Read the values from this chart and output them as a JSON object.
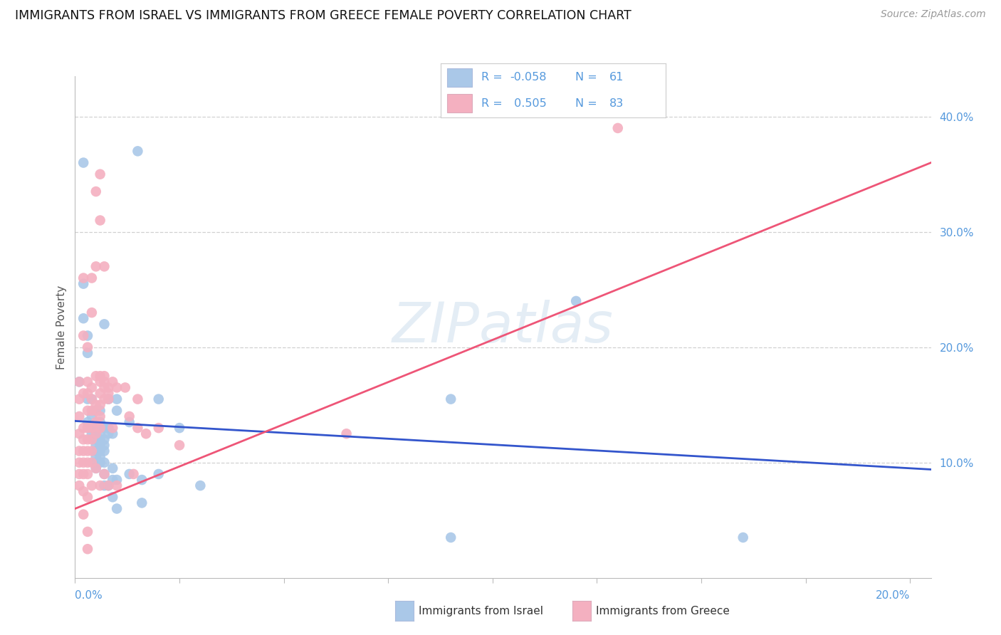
{
  "title": "IMMIGRANTS FROM ISRAEL VS IMMIGRANTS FROM GREECE FEMALE POVERTY CORRELATION CHART",
  "source": "Source: ZipAtlas.com",
  "ylabel": "Female Poverty",
  "xlim": [
    0.0,
    0.205
  ],
  "ylim": [
    0.0,
    0.435
  ],
  "yticks": [
    0.1,
    0.2,
    0.3,
    0.4
  ],
  "ytick_labels": [
    "10.0%",
    "20.0%",
    "30.0%",
    "40.0%"
  ],
  "xtick_positions": [
    0.0,
    0.025,
    0.05,
    0.075,
    0.1,
    0.125,
    0.15,
    0.175,
    0.2
  ],
  "israel_color": "#aac8e8",
  "greece_color": "#f4b0c0",
  "israel_line_color": "#3355cc",
  "greece_line_color": "#ee5577",
  "tick_label_color": "#5599dd",
  "legend_text_color": "#5599dd",
  "watermark": "ZIPatlas",
  "background_color": "#ffffff",
  "israel_scatter": [
    [
      0.001,
      0.17
    ],
    [
      0.002,
      0.36
    ],
    [
      0.002,
      0.255
    ],
    [
      0.002,
      0.225
    ],
    [
      0.003,
      0.21
    ],
    [
      0.003,
      0.195
    ],
    [
      0.003,
      0.155
    ],
    [
      0.003,
      0.135
    ],
    [
      0.004,
      0.155
    ],
    [
      0.004,
      0.14
    ],
    [
      0.004,
      0.13
    ],
    [
      0.004,
      0.125
    ],
    [
      0.005,
      0.145
    ],
    [
      0.005,
      0.13
    ],
    [
      0.005,
      0.12
    ],
    [
      0.005,
      0.115
    ],
    [
      0.005,
      0.11
    ],
    [
      0.005,
      0.105
    ],
    [
      0.005,
      0.1
    ],
    [
      0.005,
      0.095
    ],
    [
      0.006,
      0.145
    ],
    [
      0.006,
      0.135
    ],
    [
      0.006,
      0.125
    ],
    [
      0.006,
      0.12
    ],
    [
      0.006,
      0.115
    ],
    [
      0.006,
      0.11
    ],
    [
      0.006,
      0.105
    ],
    [
      0.006,
      0.1
    ],
    [
      0.007,
      0.22
    ],
    [
      0.007,
      0.13
    ],
    [
      0.007,
      0.12
    ],
    [
      0.007,
      0.115
    ],
    [
      0.007,
      0.11
    ],
    [
      0.007,
      0.1
    ],
    [
      0.007,
      0.09
    ],
    [
      0.007,
      0.08
    ],
    [
      0.008,
      0.155
    ],
    [
      0.008,
      0.13
    ],
    [
      0.008,
      0.125
    ],
    [
      0.008,
      0.08
    ],
    [
      0.009,
      0.125
    ],
    [
      0.009,
      0.095
    ],
    [
      0.009,
      0.085
    ],
    [
      0.009,
      0.07
    ],
    [
      0.01,
      0.155
    ],
    [
      0.01,
      0.145
    ],
    [
      0.01,
      0.085
    ],
    [
      0.01,
      0.06
    ],
    [
      0.013,
      0.135
    ],
    [
      0.013,
      0.09
    ],
    [
      0.015,
      0.37
    ],
    [
      0.016,
      0.085
    ],
    [
      0.016,
      0.065
    ],
    [
      0.02,
      0.155
    ],
    [
      0.02,
      0.09
    ],
    [
      0.025,
      0.13
    ],
    [
      0.03,
      0.08
    ],
    [
      0.09,
      0.155
    ],
    [
      0.09,
      0.035
    ],
    [
      0.12,
      0.24
    ],
    [
      0.16,
      0.035
    ]
  ],
  "greece_scatter": [
    [
      0.001,
      0.17
    ],
    [
      0.001,
      0.155
    ],
    [
      0.001,
      0.14
    ],
    [
      0.001,
      0.125
    ],
    [
      0.001,
      0.11
    ],
    [
      0.001,
      0.1
    ],
    [
      0.001,
      0.09
    ],
    [
      0.001,
      0.08
    ],
    [
      0.002,
      0.26
    ],
    [
      0.002,
      0.21
    ],
    [
      0.002,
      0.16
    ],
    [
      0.002,
      0.13
    ],
    [
      0.002,
      0.12
    ],
    [
      0.002,
      0.11
    ],
    [
      0.002,
      0.1
    ],
    [
      0.002,
      0.09
    ],
    [
      0.002,
      0.075
    ],
    [
      0.002,
      0.055
    ],
    [
      0.003,
      0.2
    ],
    [
      0.003,
      0.17
    ],
    [
      0.003,
      0.16
    ],
    [
      0.003,
      0.145
    ],
    [
      0.003,
      0.13
    ],
    [
      0.003,
      0.12
    ],
    [
      0.003,
      0.11
    ],
    [
      0.003,
      0.1
    ],
    [
      0.003,
      0.09
    ],
    [
      0.003,
      0.07
    ],
    [
      0.003,
      0.04
    ],
    [
      0.003,
      0.025
    ],
    [
      0.004,
      0.26
    ],
    [
      0.004,
      0.23
    ],
    [
      0.004,
      0.165
    ],
    [
      0.004,
      0.155
    ],
    [
      0.004,
      0.145
    ],
    [
      0.004,
      0.13
    ],
    [
      0.004,
      0.12
    ],
    [
      0.004,
      0.11
    ],
    [
      0.004,
      0.1
    ],
    [
      0.004,
      0.08
    ],
    [
      0.005,
      0.335
    ],
    [
      0.005,
      0.27
    ],
    [
      0.005,
      0.175
    ],
    [
      0.005,
      0.15
    ],
    [
      0.005,
      0.145
    ],
    [
      0.005,
      0.135
    ],
    [
      0.005,
      0.125
    ],
    [
      0.005,
      0.095
    ],
    [
      0.006,
      0.35
    ],
    [
      0.006,
      0.31
    ],
    [
      0.006,
      0.175
    ],
    [
      0.006,
      0.17
    ],
    [
      0.006,
      0.16
    ],
    [
      0.006,
      0.15
    ],
    [
      0.006,
      0.14
    ],
    [
      0.006,
      0.13
    ],
    [
      0.006,
      0.08
    ],
    [
      0.007,
      0.27
    ],
    [
      0.007,
      0.175
    ],
    [
      0.007,
      0.17
    ],
    [
      0.007,
      0.165
    ],
    [
      0.007,
      0.155
    ],
    [
      0.007,
      0.09
    ],
    [
      0.008,
      0.165
    ],
    [
      0.008,
      0.16
    ],
    [
      0.008,
      0.155
    ],
    [
      0.008,
      0.08
    ],
    [
      0.009,
      0.17
    ],
    [
      0.009,
      0.13
    ],
    [
      0.01,
      0.165
    ],
    [
      0.01,
      0.08
    ],
    [
      0.012,
      0.165
    ],
    [
      0.013,
      0.14
    ],
    [
      0.014,
      0.09
    ],
    [
      0.015,
      0.155
    ],
    [
      0.015,
      0.13
    ],
    [
      0.017,
      0.125
    ],
    [
      0.02,
      0.13
    ],
    [
      0.025,
      0.115
    ],
    [
      0.065,
      0.125
    ],
    [
      0.13,
      0.39
    ]
  ],
  "israel_trend_x": [
    0.0,
    0.205
  ],
  "israel_trend_y": [
    0.136,
    0.094
  ],
  "greece_trend_x": [
    0.0,
    0.205
  ],
  "greece_trend_y": [
    0.06,
    0.36
  ]
}
